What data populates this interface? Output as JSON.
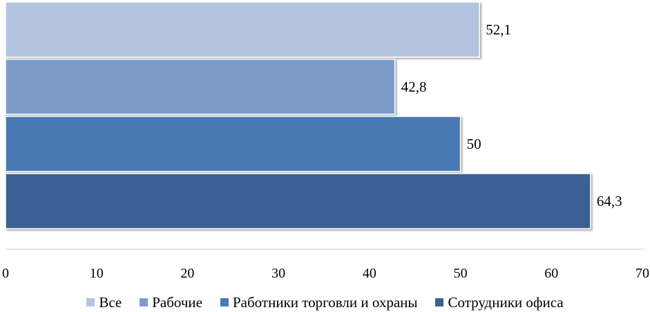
{
  "chart_data": {
    "type": "bar",
    "orientation": "horizontal",
    "title": "",
    "xlabel": "",
    "ylabel": "",
    "xlim": [
      0,
      70
    ],
    "xticks": [
      0,
      10,
      20,
      30,
      40,
      50,
      60,
      70
    ],
    "grid": false,
    "legend_position": "bottom",
    "series": [
      {
        "name": "Все",
        "value": 52.1,
        "label": "52,1",
        "color": "#b3c3df"
      },
      {
        "name": "Рабочие",
        "value": 42.8,
        "label": "42,8",
        "color": "#7e9cc9"
      },
      {
        "name": "Работники торговли и охраны",
        "value": 50,
        "label": "50",
        "color": "#4a79b4"
      },
      {
        "name": "Сотрудники офиса",
        "value": 64.3,
        "label": "64,3",
        "color": "#3b6194"
      }
    ]
  }
}
